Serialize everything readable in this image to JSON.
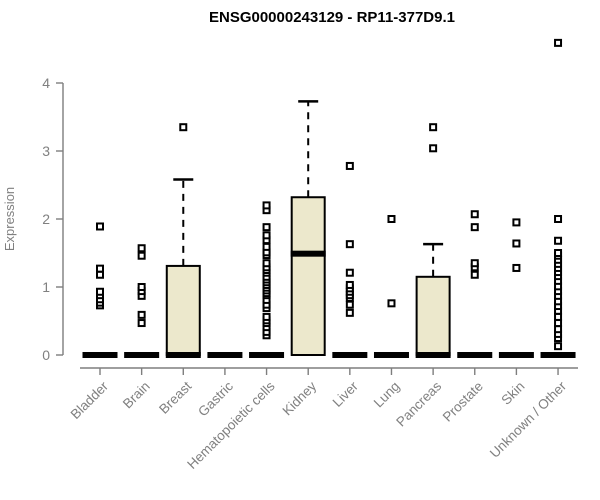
{
  "title": "ENSG00000243129 - RP11-377D9.1",
  "colors": {
    "box_fill": "#ECE8CC",
    "box_stroke": "#000000",
    "axis_color": "#7E7E7E",
    "tick_label_color": "#808080",
    "title_color": "#000000"
  },
  "chart_data": {
    "type": "boxplot",
    "title": "ENSG00000243129 - RP11-377D9.1",
    "xlabel": "",
    "ylabel": "Expression",
    "ylim": [
      0,
      4.7
    ],
    "y_ticks": [
      0,
      1,
      2,
      3,
      4
    ],
    "grid": false,
    "legend": "none",
    "categories": [
      "Bladder",
      "Brain",
      "Breast",
      "Gastric",
      "Hematopoietic cells",
      "Kidney",
      "Liver",
      "Lung",
      "Pancreas",
      "Prostate",
      "Skin",
      "Unknown / Other"
    ],
    "series": [
      {
        "category": "Bladder",
        "q1": 0,
        "median": 0,
        "q3": 0,
        "whisker_low": 0,
        "whisker_high": 0,
        "outliers": [
          0.73,
          0.77,
          0.82,
          0.88,
          0.93,
          1.18,
          1.27,
          1.89
        ]
      },
      {
        "category": "Brain",
        "q1": 0,
        "median": 0,
        "q3": 0,
        "whisker_low": 0,
        "whisker_high": 0,
        "outliers": [
          0.47,
          0.59,
          0.87,
          0.94,
          1.0,
          1.46,
          1.57
        ]
      },
      {
        "category": "Breast",
        "q1": 0,
        "median": 0,
        "q3": 1.31,
        "whisker_low": 0,
        "whisker_high": 2.58,
        "outliers": [
          3.35
        ]
      },
      {
        "category": "Gastric",
        "q1": 0,
        "median": 0,
        "q3": 0,
        "whisker_low": 0,
        "whisker_high": 0,
        "outliers": []
      },
      {
        "category": "Hematopoietic cells",
        "q1": 0,
        "median": 0,
        "q3": 0,
        "whisker_low": 0,
        "whisker_high": 0,
        "outliers": [
          0.29,
          0.34,
          0.41,
          0.47,
          0.51,
          0.56,
          0.69,
          0.74,
          0.81,
          0.88,
          0.91,
          0.95,
          0.99,
          1.03,
          1.07,
          1.11,
          1.15,
          1.21,
          1.25,
          1.29,
          1.35,
          1.47,
          1.51,
          1.59,
          1.69,
          1.76,
          1.88,
          2.13,
          2.2
        ]
      },
      {
        "category": "Kidney",
        "q1": 0,
        "median": 1.49,
        "q3": 2.32,
        "whisker_low": 0,
        "whisker_high": 3.73,
        "outliers": []
      },
      {
        "category": "Liver",
        "q1": 0,
        "median": 0,
        "q3": 0,
        "whisker_low": 0,
        "whisker_high": 0,
        "outliers": [
          0.62,
          0.74,
          0.84,
          0.88,
          0.93,
          0.98,
          1.03,
          1.21,
          1.63,
          2.78
        ]
      },
      {
        "category": "Lung",
        "q1": 0,
        "median": 0,
        "q3": 0,
        "whisker_low": 0,
        "whisker_high": 0,
        "outliers": [
          0.76,
          2.0
        ]
      },
      {
        "category": "Pancreas",
        "q1": 0,
        "median": 0,
        "q3": 1.15,
        "whisker_low": 0,
        "whisker_high": 1.63,
        "outliers": [
          3.04,
          3.35
        ]
      },
      {
        "category": "Prostate",
        "q1": 0,
        "median": 0,
        "q3": 0,
        "whisker_low": 0,
        "whisker_high": 0,
        "outliers": [
          1.18,
          1.29,
          1.35,
          1.88,
          2.07
        ]
      },
      {
        "category": "Skin",
        "q1": 0,
        "median": 0,
        "q3": 0,
        "whisker_low": 0,
        "whisker_high": 0,
        "outliers": [
          1.28,
          1.64,
          1.95
        ]
      },
      {
        "category": "Unknown / Other",
        "q1": 0,
        "median": 0,
        "q3": 0,
        "whisker_low": 0,
        "whisker_high": 0,
        "outliers": [
          0.13,
          0.25,
          0.31,
          0.38,
          0.47,
          0.56,
          0.65,
          0.72,
          0.79,
          0.87,
          0.94,
          1.01,
          1.09,
          1.16,
          1.22,
          1.28,
          1.34,
          1.4,
          1.46,
          1.5,
          1.68,
          2.0,
          4.59
        ]
      }
    ]
  }
}
